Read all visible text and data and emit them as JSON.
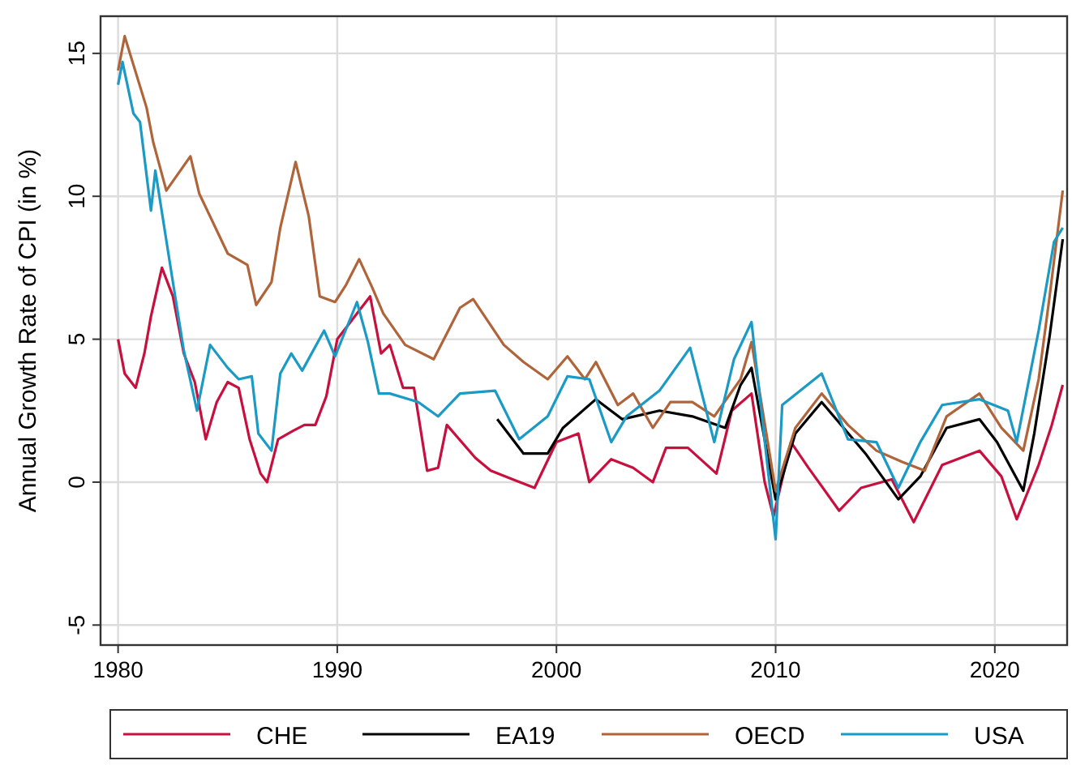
{
  "chart_data": {
    "type": "line",
    "ylabel": "Annual Growth Rate of CPI (in %)",
    "xlim": [
      1979.2,
      2023.3
    ],
    "xticks": [
      1980,
      1990,
      2000,
      2010,
      2020
    ],
    "ylim": [
      -5.7,
      16.3
    ],
    "yticks": [
      -5,
      0,
      5,
      10,
      15
    ],
    "grid": true,
    "legend": "bottom",
    "line_style": "solid",
    "marker": "none",
    "series": [
      {
        "name": "CHE",
        "color": "#c8103e",
        "x": [
          1980,
          1980.3,
          1980.8,
          1981.2,
          1981.5,
          1982,
          1982.5,
          1983,
          1983.5,
          1984,
          1984.5,
          1985,
          1985.5,
          1986,
          1986.5,
          1986.8,
          1987.3,
          1988,
          1988.5,
          1989,
          1989.5,
          1990,
          1990.5,
          1991,
          1991.5,
          1992,
          1992.4,
          1993,
          1993.5,
          1994.1,
          1994.6,
          1995,
          1996.3,
          1997,
          1998,
          1999,
          2000,
          2001,
          2001.5,
          2002.5,
          2003.5,
          2004.4,
          2005,
          2006,
          2007.3,
          2008,
          2008.9,
          2009.5,
          2009.9,
          2010.7,
          2011.5,
          2012.9,
          2013.9,
          2015.3,
          2016.3,
          2017.6,
          2019.3,
          2020.3,
          2021,
          2022,
          2022.6,
          2023.1
        ],
        "values": [
          5.0,
          3.8,
          3.3,
          4.5,
          5.8,
          7.5,
          6.5,
          4.5,
          3.5,
          1.5,
          2.8,
          3.5,
          3.3,
          1.5,
          0.3,
          0.0,
          1.5,
          1.8,
          2.0,
          2.0,
          3.0,
          5.0,
          5.5,
          6.0,
          6.5,
          4.5,
          4.8,
          3.3,
          3.3,
          0.4,
          0.5,
          2.0,
          0.85,
          0.4,
          0.1,
          -0.2,
          1.4,
          1.7,
          0.0,
          0.8,
          0.5,
          0.0,
          1.2,
          1.2,
          0.3,
          2.5,
          3.1,
          0.0,
          -1.2,
          1.4,
          0.5,
          -1.0,
          -0.2,
          0.1,
          -1.4,
          0.6,
          1.1,
          0.2,
          -1.3,
          0.6,
          2.0,
          3.4
        ]
      },
      {
        "name": "EA19",
        "color": "#000000",
        "x": [
          1997.3,
          1998.5,
          1999.6,
          2000.3,
          2001.8,
          2003,
          2004.7,
          2006.2,
          2007.7,
          2008.4,
          2008.9,
          2010,
          2010.9,
          2012.1,
          2014.1,
          2015.6,
          2016.6,
          2017.8,
          2019.3,
          2020.1,
          2021.3,
          2021.8,
          2022.5,
          2023.1
        ],
        "values": [
          2.2,
          1.0,
          1.0,
          1.9,
          2.9,
          2.2,
          2.5,
          2.3,
          1.9,
          3.4,
          4.0,
          -0.6,
          1.7,
          2.8,
          1.0,
          -0.6,
          0.2,
          1.9,
          2.2,
          1.4,
          -0.3,
          1.7,
          5.1,
          8.5
        ]
      },
      {
        "name": "OECD",
        "color": "#b0643a",
        "x": [
          1980,
          1980.3,
          1981.3,
          1981.6,
          1982.2,
          1983.3,
          1983.7,
          1985,
          1985.9,
          1986.3,
          1987,
          1987.4,
          1988.1,
          1988.7,
          1989.2,
          1989.9,
          1990.4,
          1991,
          1991.6,
          1992.1,
          1993.1,
          1994.4,
          1995.6,
          1996.2,
          1997.6,
          1998.5,
          1999.6,
          2000.5,
          2001.3,
          2001.8,
          2002.8,
          2003.5,
          2004.4,
          2005.2,
          2006.2,
          2007.2,
          2008.4,
          2008.9,
          2010,
          2010.9,
          2012.1,
          2013.3,
          2014.6,
          2015.8,
          2016.8,
          2017.8,
          2019.3,
          2020.3,
          2021.3,
          2022,
          2022.5,
          2023.1
        ],
        "values": [
          14.4,
          15.6,
          13.1,
          11.9,
          10.2,
          11.4,
          10.1,
          8.0,
          7.6,
          6.2,
          7.0,
          8.9,
          11.2,
          9.3,
          6.5,
          6.3,
          6.9,
          7.8,
          6.8,
          5.9,
          4.8,
          4.3,
          6.1,
          6.4,
          4.8,
          4.2,
          3.6,
          4.4,
          3.6,
          4.2,
          2.7,
          3.1,
          1.9,
          2.8,
          2.8,
          2.3,
          3.6,
          4.9,
          -0.3,
          1.9,
          3.1,
          2.0,
          1.1,
          0.7,
          0.4,
          2.3,
          3.1,
          1.9,
          1.1,
          3.6,
          6.5,
          10.2
        ]
      },
      {
        "name": "USA",
        "color": "#1a9ac4",
        "x": [
          1980,
          1980.2,
          1980.7,
          1981,
          1981.5,
          1981.7,
          1982.5,
          1983,
          1983.6,
          1984.2,
          1985,
          1985.5,
          1986.1,
          1986.4,
          1987,
          1987.4,
          1987.9,
          1988.4,
          1989.4,
          1989.9,
          1990.9,
          1991.4,
          1991.9,
          1992.4,
          1993.7,
          1994.6,
          1995.6,
          1997.2,
          1998.3,
          1999.6,
          2000.5,
          2001.5,
          2002.5,
          2003.2,
          2004.7,
          2006.1,
          2007.2,
          2008.1,
          2008.9,
          2010,
          2010.3,
          2012.1,
          2013.3,
          2014.6,
          2015.6,
          2016.6,
          2017.6,
          2019.3,
          2020.6,
          2021,
          2022,
          2022.7,
          2023.1
        ],
        "values": [
          13.9,
          14.7,
          12.9,
          12.6,
          9.5,
          10.9,
          7.0,
          4.6,
          2.5,
          4.8,
          4.0,
          3.6,
          3.7,
          1.7,
          1.1,
          3.8,
          4.5,
          3.9,
          5.3,
          4.4,
          6.3,
          4.9,
          3.1,
          3.1,
          2.8,
          2.3,
          3.1,
          3.2,
          1.5,
          2.3,
          3.7,
          3.6,
          1.4,
          2.3,
          3.2,
          4.7,
          1.4,
          4.3,
          5.6,
          -2.0,
          2.7,
          3.8,
          1.5,
          1.4,
          -0.2,
          1.4,
          2.7,
          2.9,
          2.5,
          1.4,
          5.3,
          8.4,
          8.9
        ]
      }
    ]
  }
}
